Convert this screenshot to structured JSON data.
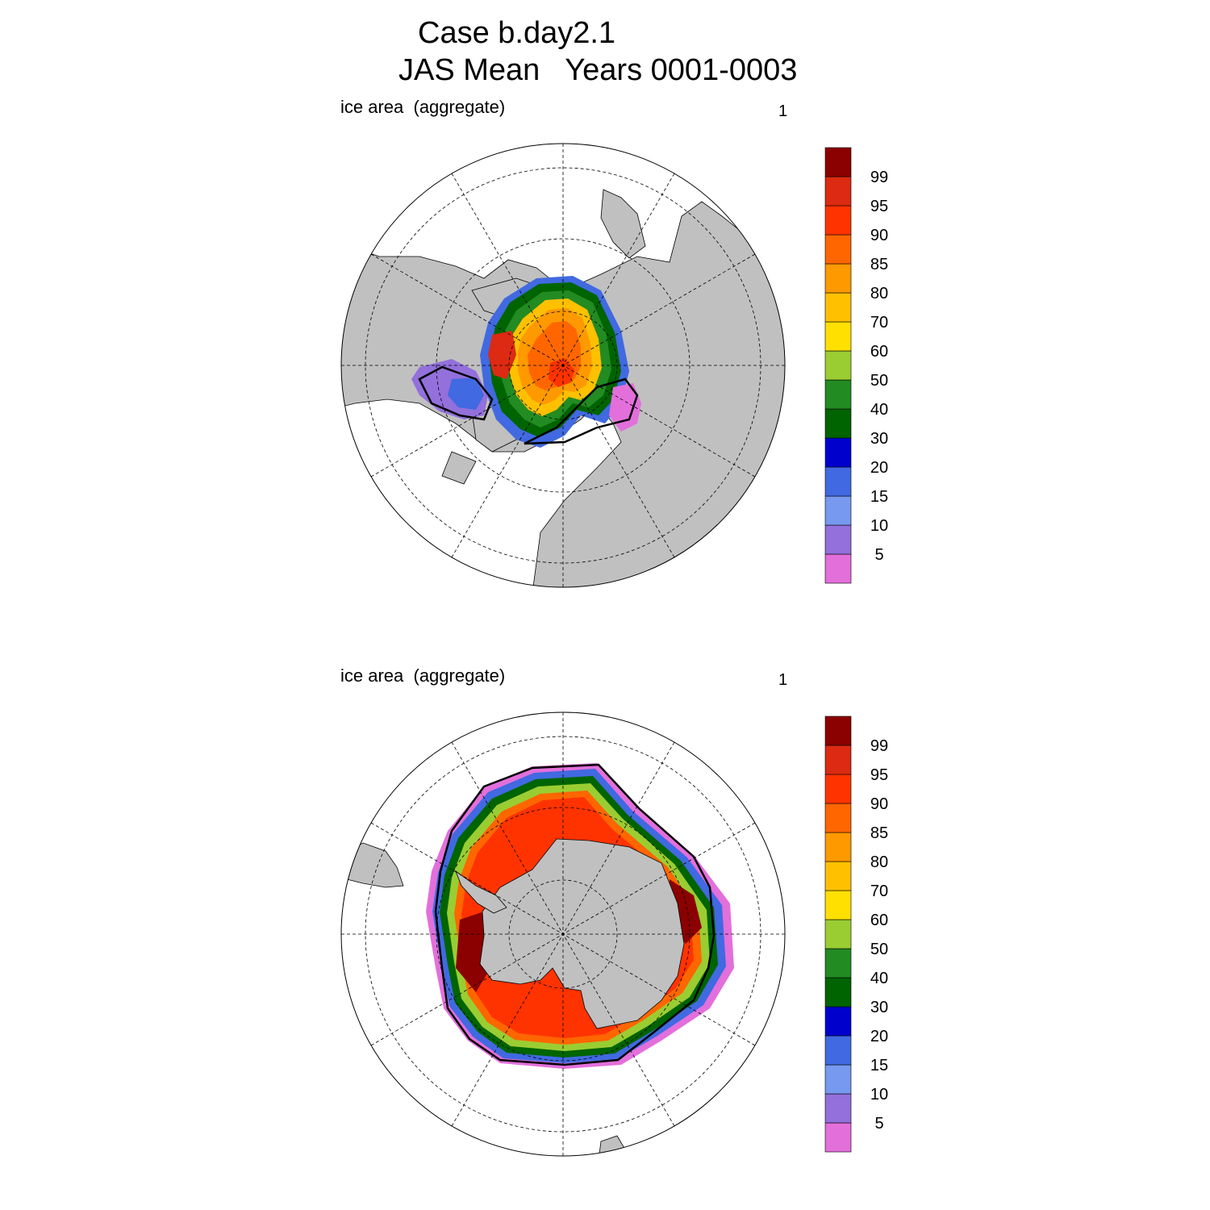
{
  "header": {
    "line1": "Case b.day2.1",
    "line2": "JAS Mean   Years 0001-0003"
  },
  "panels": [
    {
      "id": "nh",
      "hemisphere": "north",
      "label": "ice area  (aggregate)",
      "number": "1"
    },
    {
      "id": "sh",
      "hemisphere": "south",
      "label": "ice area  (aggregate)",
      "number": "1"
    }
  ],
  "colorbar": {
    "levels": [
      "5",
      "10",
      "15",
      "20",
      "30",
      "40",
      "50",
      "60",
      "70",
      "80",
      "85",
      "90",
      "95",
      "99"
    ],
    "colors": [
      "#e36fdb",
      "#9370db",
      "#7799f0",
      "#4169e1",
      "#0000cd",
      "#006400",
      "#228b22",
      "#9acd32",
      "#ffe000",
      "#ffc000",
      "#ff9900",
      "#ff6600",
      "#ff3300",
      "#dd2a12",
      "#8b0000"
    ]
  },
  "map_style": {
    "land_color": "#c0c0c0",
    "ocean_color": "#ffffff",
    "contour_line_color": "#000000"
  }
}
